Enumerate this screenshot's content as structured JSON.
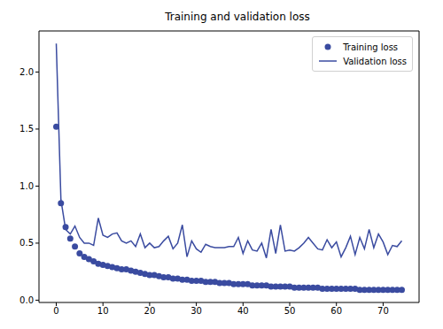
{
  "chart_data": {
    "type": "line",
    "title": "Training and validation loss",
    "x": [
      0,
      1,
      2,
      3,
      4,
      5,
      6,
      7,
      8,
      9,
      10,
      11,
      12,
      13,
      14,
      15,
      16,
      17,
      18,
      19,
      20,
      21,
      22,
      23,
      24,
      25,
      26,
      27,
      28,
      29,
      30,
      31,
      32,
      33,
      34,
      35,
      36,
      37,
      38,
      39,
      40,
      41,
      42,
      43,
      44,
      45,
      46,
      47,
      48,
      49,
      50,
      51,
      52,
      53,
      54,
      55,
      56,
      57,
      58,
      59,
      60,
      61,
      62,
      63,
      64,
      65,
      66,
      67,
      68,
      69,
      70,
      71,
      72,
      73,
      74
    ],
    "series": [
      {
        "name": "Training loss",
        "type": "scatter",
        "marker": "circle",
        "color": "#3a4ba0",
        "values": [
          1.52,
          0.85,
          0.64,
          0.54,
          0.47,
          0.41,
          0.38,
          0.36,
          0.34,
          0.32,
          0.31,
          0.3,
          0.29,
          0.28,
          0.27,
          0.27,
          0.26,
          0.25,
          0.24,
          0.23,
          0.22,
          0.22,
          0.21,
          0.2,
          0.2,
          0.19,
          0.19,
          0.18,
          0.18,
          0.17,
          0.17,
          0.17,
          0.16,
          0.16,
          0.16,
          0.15,
          0.15,
          0.15,
          0.14,
          0.14,
          0.14,
          0.14,
          0.13,
          0.13,
          0.13,
          0.13,
          0.12,
          0.12,
          0.12,
          0.12,
          0.12,
          0.11,
          0.11,
          0.11,
          0.11,
          0.11,
          0.11,
          0.1,
          0.1,
          0.1,
          0.1,
          0.1,
          0.1,
          0.1,
          0.1,
          0.09,
          0.09,
          0.09,
          0.09,
          0.09,
          0.09,
          0.09,
          0.09,
          0.09,
          0.09
        ]
      },
      {
        "name": "Validation loss",
        "type": "line",
        "line_style": "solid",
        "color": "#3a4ba0",
        "values": [
          2.25,
          0.88,
          0.62,
          0.58,
          0.65,
          0.55,
          0.5,
          0.5,
          0.48,
          0.72,
          0.57,
          0.55,
          0.58,
          0.59,
          0.52,
          0.5,
          0.52,
          0.47,
          0.58,
          0.46,
          0.5,
          0.46,
          0.47,
          0.52,
          0.56,
          0.45,
          0.5,
          0.66,
          0.38,
          0.52,
          0.45,
          0.42,
          0.49,
          0.47,
          0.46,
          0.46,
          0.46,
          0.47,
          0.47,
          0.55,
          0.41,
          0.52,
          0.44,
          0.43,
          0.5,
          0.37,
          0.62,
          0.41,
          0.66,
          0.43,
          0.44,
          0.43,
          0.46,
          0.5,
          0.55,
          0.5,
          0.45,
          0.44,
          0.53,
          0.46,
          0.51,
          0.38,
          0.46,
          0.56,
          0.4,
          0.55,
          0.45,
          0.62,
          0.46,
          0.58,
          0.51,
          0.4,
          0.48,
          0.47,
          0.52
        ]
      }
    ],
    "xlim": [
      -3.7,
      77.7
    ],
    "xticks": [
      0,
      10,
      20,
      30,
      40,
      50,
      60,
      70
    ],
    "ylim": [
      -0.02,
      2.36
    ],
    "yticks": [
      {
        "value": 0,
        "label": "0.0"
      },
      0.5,
      {
        "value": 1,
        "label": "1.0"
      },
      1.5,
      {
        "value": 2,
        "label": "2.0"
      }
    ],
    "grid": false,
    "legend": "upper right"
  }
}
